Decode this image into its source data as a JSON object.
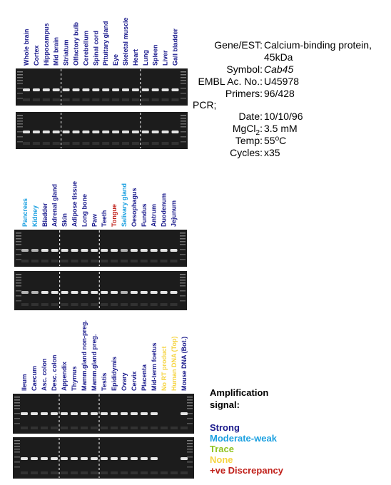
{
  "panels": [
    {
      "lanes": [
        {
          "label": "Whole brain",
          "color": "#1a1a8c"
        },
        {
          "label": "Cortex",
          "color": "#1a1a8c"
        },
        {
          "label": "Hippocampus",
          "color": "#1a1a8c"
        },
        {
          "label": "Mid brain",
          "color": "#1a1a8c"
        },
        {
          "label": "Striatum",
          "color": "#1a1a8c"
        },
        {
          "label": "Olfactory bulb",
          "color": "#1a1a8c"
        },
        {
          "label": "Cerebellum",
          "color": "#1a1a8c"
        },
        {
          "label": "Spinal cord",
          "color": "#1a1a8c"
        },
        {
          "label": "Pituitary gland",
          "color": "#1a1a8c"
        },
        {
          "label": "Eye",
          "color": "#1a1a8c"
        },
        {
          "label": "Skeletal muscle",
          "color": "#1a1a8c"
        },
        {
          "label": "Heart",
          "color": "#1a1a8c"
        },
        {
          "label": "Lung",
          "color": "#1a1a8c"
        },
        {
          "label": "Spleen",
          "color": "#1a1a8c"
        },
        {
          "label": "Liver",
          "color": "#1a1a8c"
        },
        {
          "label": "Gall bladder",
          "color": "#1a1a8c"
        }
      ]
    },
    {
      "lanes": [
        {
          "label": "Pancreas",
          "color": "#1ba0e0"
        },
        {
          "label": "Kidney",
          "color": "#1ba0e0"
        },
        {
          "label": "Bladder",
          "color": "#1a1a8c"
        },
        {
          "label": "Adrenal gland",
          "color": "#1a1a8c"
        },
        {
          "label": "Skin",
          "color": "#1a1a8c"
        },
        {
          "label": "Adipose tissue",
          "color": "#1a1a8c"
        },
        {
          "label": "Long bone",
          "color": "#1a1a8c"
        },
        {
          "label": "Paw",
          "color": "#1a1a8c"
        },
        {
          "label": "Teeth",
          "color": "#1a1a8c"
        },
        {
          "label": "Tongue",
          "color": "#c0201a"
        },
        {
          "label": "Salivary gland",
          "color": "#1ba0e0"
        },
        {
          "label": "Oesophagus",
          "color": "#1a1a8c"
        },
        {
          "label": "Fundus",
          "color": "#1a1a8c"
        },
        {
          "label": "Antrum",
          "color": "#1a1a8c"
        },
        {
          "label": "Duodenum",
          "color": "#1a1a8c"
        },
        {
          "label": "Jejunum",
          "color": "#1a1a8c"
        }
      ]
    },
    {
      "lanes": [
        {
          "label": "Ileum",
          "color": "#1a1a8c"
        },
        {
          "label": "Caecum",
          "color": "#1a1a8c"
        },
        {
          "label": "Asc. colon",
          "color": "#1a1a8c"
        },
        {
          "label": "Desc. colon",
          "color": "#1a1a8c"
        },
        {
          "label": "Appendix",
          "color": "#1a1a8c"
        },
        {
          "label": "Thymus",
          "color": "#1a1a8c"
        },
        {
          "label": "Mamm.gland non-preg.",
          "color": "#1a1a8c"
        },
        {
          "label": "Mamm.gland preg.",
          "color": "#1a1a8c"
        },
        {
          "label": "Testis",
          "color": "#1a1a8c"
        },
        {
          "label": "Epididymis",
          "color": "#1a1a8c"
        },
        {
          "label": "Ovary",
          "color": "#1a1a8c"
        },
        {
          "label": "Cervix",
          "color": "#1a1a8c"
        },
        {
          "label": "Placenta",
          "color": "#1a1a8c"
        },
        {
          "label": "Mid-term foetus",
          "color": "#1a1a8c"
        },
        {
          "label": "No RT product",
          "color": "#f5d442"
        },
        {
          "label": "Human DNA (Top)",
          "color": "#f5d442"
        },
        {
          "label": "Mouse DNA (Bot.)",
          "color": "#1a1a8c"
        }
      ]
    }
  ],
  "info": {
    "gene_key": "Gene/EST:",
    "gene_value": "Calcium-binding protein,",
    "gene_value_2": "45kDa",
    "symbol_key": "Symbol:",
    "symbol_value": "Cab45",
    "embl_key": "EMBL Ac. No.:",
    "embl_value": "U45978",
    "primers_key": "Primers:",
    "primers_value": "96/428",
    "pcr": "PCR;",
    "date_key": "Date:",
    "date_value": "10/10/96",
    "mgcl_key": [
      "MgCl",
      "2",
      ":"
    ],
    "mgcl_value": "3.5 mM",
    "temp_key": "Temp:",
    "temp_value": [
      "55",
      "o",
      "C"
    ],
    "cycles_key": "Cycles:",
    "cycles_value": "x35"
  },
  "legend": {
    "title": "Amplification",
    "title_2": "signal:",
    "items": [
      {
        "label": "Strong",
        "color": "#1a1a8c"
      },
      {
        "label": "Moderate-weak",
        "color": "#1ba0e0"
      },
      {
        "label": "Trace",
        "color": "#8fc31f"
      },
      {
        "label": "None",
        "color": "#f5d442"
      },
      {
        "label": "+ve Discrepancy",
        "color": "#c0201a"
      }
    ]
  }
}
